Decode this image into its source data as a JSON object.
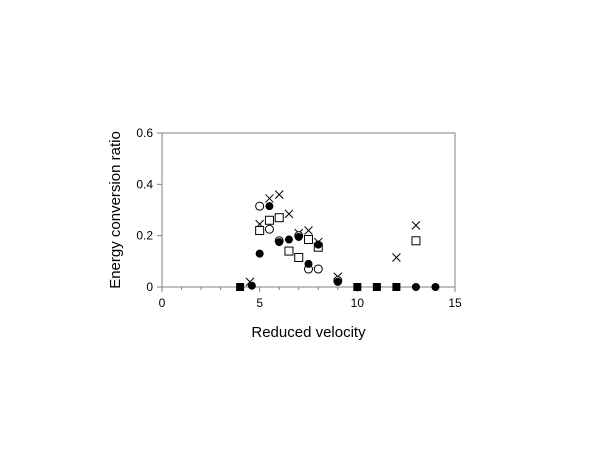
{
  "chart_data": {
    "type": "scatter",
    "xlabel": "Reduced velocity",
    "ylabel": "Energy conversion ratio",
    "xlim": [
      0,
      15
    ],
    "ylim": [
      0,
      0.6
    ],
    "xticks": [
      0,
      5,
      10,
      15
    ],
    "yticks": [
      0,
      0.2,
      0.4,
      0.6
    ],
    "x_minor_step": 1,
    "grid": false,
    "legend": "none",
    "series": [
      {
        "marker": "cross",
        "color": "#000000",
        "points": [
          [
            4.5,
            0.02
          ],
          [
            5.0,
            0.245
          ],
          [
            5.5,
            0.345
          ],
          [
            6.0,
            0.36
          ],
          [
            6.5,
            0.285
          ],
          [
            7.0,
            0.21
          ],
          [
            7.5,
            0.22
          ],
          [
            8.0,
            0.175
          ],
          [
            9.0,
            0.04
          ],
          [
            12.0,
            0.115
          ],
          [
            13.0,
            0.24
          ]
        ]
      },
      {
        "marker": "open-square",
        "color": "#000000",
        "points": [
          [
            5.0,
            0.22
          ],
          [
            5.5,
            0.26
          ],
          [
            6.0,
            0.27
          ],
          [
            6.5,
            0.14
          ],
          [
            7.0,
            0.115
          ],
          [
            7.5,
            0.185
          ],
          [
            8.0,
            0.155
          ],
          [
            13.0,
            0.18
          ]
        ]
      },
      {
        "marker": "open-circle",
        "color": "#000000",
        "points": [
          [
            5.0,
            0.315
          ],
          [
            5.5,
            0.225
          ],
          [
            6.0,
            0.18
          ],
          [
            7.0,
            0.2
          ],
          [
            7.5,
            0.07
          ],
          [
            8.0,
            0.07
          ],
          [
            9.0,
            0.025
          ]
        ]
      },
      {
        "marker": "filled-circle",
        "color": "#000000",
        "points": [
          [
            4.6,
            0.005
          ],
          [
            5.0,
            0.13
          ],
          [
            5.5,
            0.315
          ],
          [
            6.0,
            0.175
          ],
          [
            6.5,
            0.185
          ],
          [
            7.0,
            0.195
          ],
          [
            7.5,
            0.09
          ],
          [
            8.0,
            0.165
          ],
          [
            9.0,
            0.02
          ],
          [
            13.0,
            0.0
          ],
          [
            14.0,
            0.0
          ]
        ]
      },
      {
        "marker": "filled-square",
        "color": "#000000",
        "points": [
          [
            4.0,
            0.0
          ],
          [
            10.0,
            0.0
          ],
          [
            11.0,
            0.0
          ],
          [
            12.0,
            0.0
          ]
        ]
      }
    ]
  }
}
